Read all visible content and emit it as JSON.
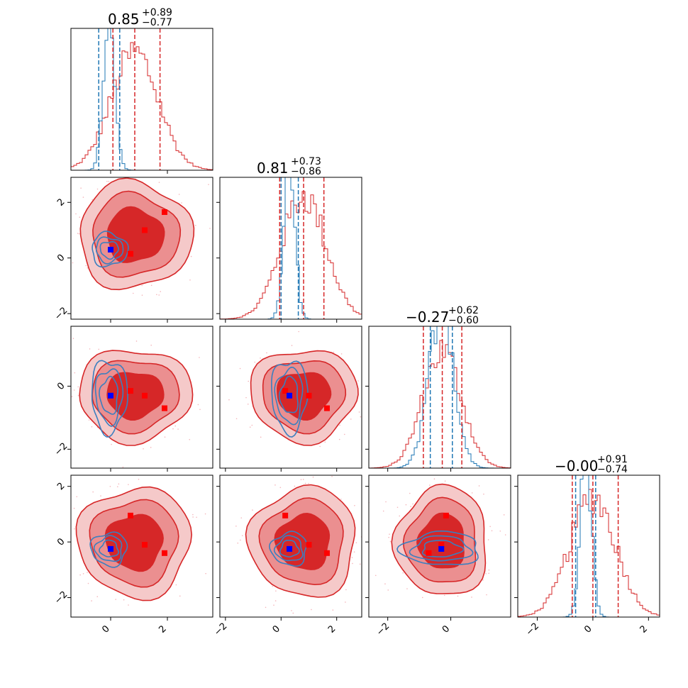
{
  "figure": {
    "type": "corner-plot",
    "colors": {
      "red": "#d62728",
      "red_fill_1": "#f5c9c9",
      "red_fill_2": "#eb8f90",
      "red_fill_3": "#d62728",
      "blue": "#1f77b4",
      "blue_contour": "#3b7fbf",
      "marker_red": "#ff0000",
      "marker_blue": "#0000ff",
      "scatter": "#f4b6bb"
    }
  },
  "chart_data": {
    "type": "corner",
    "n_params": 4,
    "titles": [
      {
        "value": "0.85",
        "plus": "+0.89",
        "minus": "−0.77"
      },
      {
        "value": "0.81",
        "plus": "+0.73",
        "minus": "−0.86"
      },
      {
        "value": "−0.27",
        "plus": "+0.62",
        "minus": "−0.60"
      },
      {
        "value": "−0.00",
        "plus": "+0.91",
        "minus": "−0.74"
      }
    ],
    "ranges": [
      [
        -1.4,
        3.6
      ],
      [
        -2.2,
        2.9
      ],
      [
        -2.6,
        1.9
      ],
      [
        -2.7,
        2.4
      ]
    ],
    "ticks": [
      [
        0,
        2
      ],
      [
        -2,
        0,
        2
      ],
      [
        -2,
        0
      ],
      [
        -2,
        0,
        2
      ]
    ],
    "tick_labels": [
      [
        "0",
        "2"
      ],
      [
        "−2",
        "0",
        "2"
      ],
      [
        "−2",
        "0"
      ],
      [
        "−2",
        "0",
        "2"
      ]
    ],
    "red_center": [
      0.85,
      0.81,
      -0.27,
      -0.0
    ],
    "red_sigma": [
      0.83,
      0.8,
      0.61,
      0.82
    ],
    "blue_center": [
      -0.05,
      0.3,
      -0.3,
      -0.25
    ],
    "blue_sigma": [
      0.2,
      0.2,
      0.4,
      0.2
    ],
    "red_quantiles": [
      [
        0.08,
        1.74
      ],
      [
        -0.05,
        1.54
      ],
      [
        -0.87,
        0.35
      ],
      [
        -0.74,
        0.91
      ]
    ],
    "blue_quantiles": [
      [
        -0.42,
        0.32
      ],
      [
        0.0,
        0.62
      ],
      [
        -0.65,
        0.05
      ],
      [
        -0.62,
        0.1
      ]
    ],
    "red_markers": [
      [
        0.7,
        0.15,
        -0.15,
        0.95
      ],
      [
        1.2,
        1.0,
        -0.3,
        -0.1
      ],
      [
        1.9,
        1.65,
        -0.7,
        -0.4
      ]
    ],
    "blue_marker": [
      0.0,
      0.3,
      -0.3,
      -0.25
    ]
  }
}
